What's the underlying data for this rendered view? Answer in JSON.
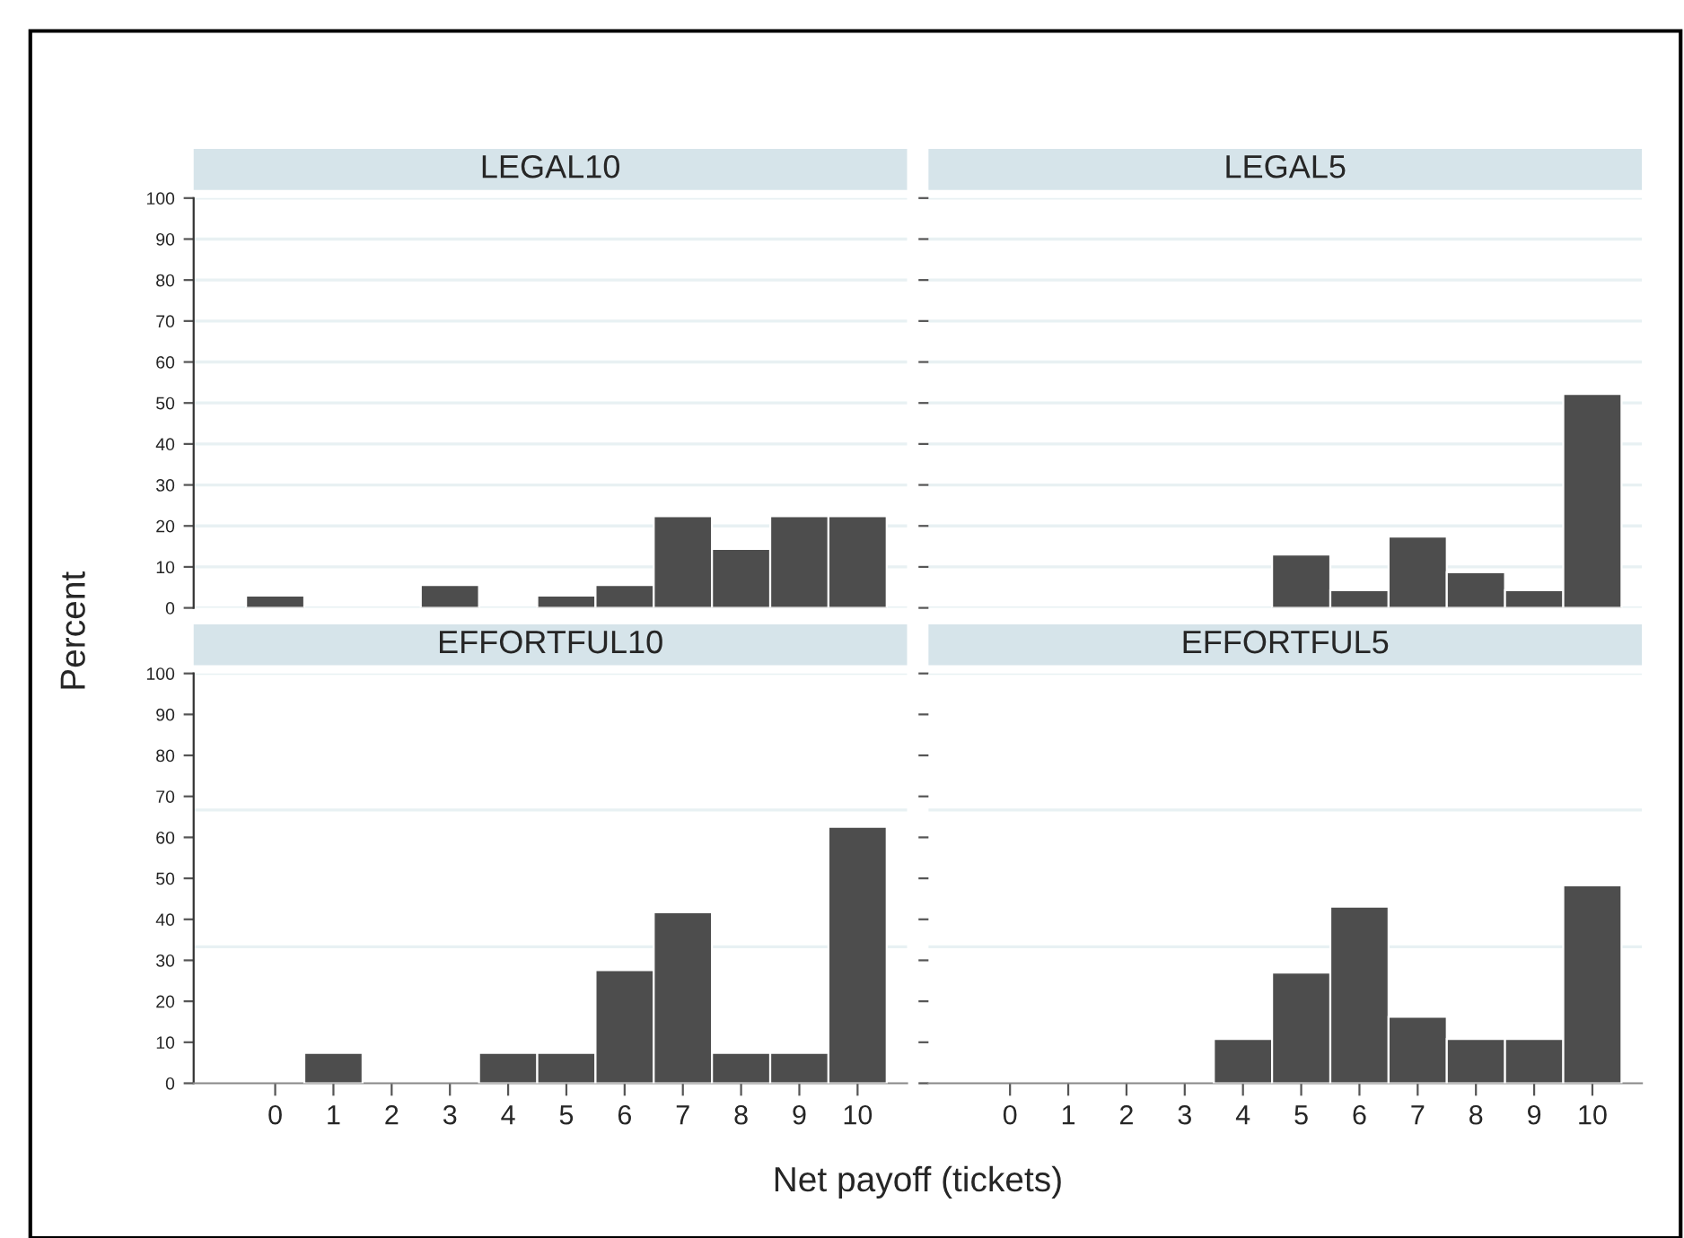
{
  "chart_data": [
    {
      "type": "histogram",
      "title": "LEGAL10",
      "ylabel": "Percent",
      "bins": [
        -0.5,
        0.5,
        1.5,
        2.5,
        3.5,
        4.5,
        5.5,
        6.5,
        7.5,
        8.5,
        9.5,
        10.5
      ],
      "values": [
        3,
        0,
        0,
        5.6,
        0,
        3,
        5.6,
        22.4,
        14.4,
        22.4,
        22.4
      ],
      "color": "#4d4d4d",
      "xlim": [
        -1.4,
        10.85
      ],
      "ylim": [
        0,
        100
      ],
      "xticks": [
        0,
        1,
        2,
        3,
        4,
        5,
        6,
        7,
        8,
        9,
        10
      ],
      "yticks": [
        0,
        10,
        20,
        30,
        40,
        50,
        60,
        70,
        80,
        90,
        100
      ],
      "grid": "y",
      "tick_labels": "y"
    },
    {
      "type": "histogram",
      "title": "LEGAL5",
      "bins": [
        -0.5,
        0.5,
        1.5,
        2.5,
        3.5,
        4.5,
        5.5,
        6.5,
        7.5,
        8.5,
        9.5,
        10.5
      ],
      "values": [
        0,
        0,
        0,
        0,
        0,
        13,
        4.3,
        17.4,
        8.7,
        4.3,
        52.2
      ],
      "color": "#4d4d4d",
      "xlim": [
        -1.4,
        10.85
      ],
      "ylim": [
        0,
        100
      ],
      "xticks": [
        0,
        1,
        2,
        3,
        4,
        5,
        6,
        7,
        8,
        9,
        10
      ],
      "yticks": [
        0,
        10,
        20,
        30,
        40,
        50,
        60,
        70,
        80,
        90,
        100
      ],
      "grid": "y",
      "tick_labels": false
    },
    {
      "type": "histogram",
      "title": "EFFORTFUL10",
      "bins": [
        -0.5,
        0.5,
        1.5,
        2.5,
        3.5,
        4.5,
        5.5,
        6.5,
        7.5,
        8.5,
        9.5,
        10.5
      ],
      "values": [
        0,
        7.4,
        0,
        0,
        7.4,
        7.4,
        27.6,
        41.7,
        7.4,
        7.4,
        62.6
      ],
      "color": "#4d4d4d",
      "xlim": [
        -1.4,
        10.85
      ],
      "ylim": [
        0,
        100
      ],
      "xticks": [
        0,
        1,
        2,
        3,
        4,
        5,
        6,
        7,
        8,
        9,
        10
      ],
      "yticks": [
        0,
        10,
        20,
        30,
        40,
        50,
        60,
        70,
        80,
        90,
        100
      ],
      "ref_lines": [
        {
          "axis": "y",
          "value": 33.3,
          "color": "#e8f1f3"
        },
        {
          "axis": "y",
          "value": 66.7,
          "color": "#e8f1f3"
        },
        {
          "axis": "y",
          "value": 100,
          "color": "#e8f1f3"
        }
      ]
    },
    {
      "type": "histogram",
      "title": "EFFORTFUL5",
      "xlabel": "Net payoff (tickets)",
      "bins": [
        -0.5,
        0.5,
        1.5,
        2.5,
        3.5,
        4.5,
        5.5,
        6.5,
        7.5,
        8.5,
        9.5,
        10.5
      ],
      "values": [
        0,
        0,
        0,
        0,
        10.8,
        27,
        43.1,
        16.2,
        10.8,
        10.8,
        48.3
      ],
      "color": "#4d4d4d",
      "xlim": [
        -1.4,
        10.85
      ],
      "ylim": [
        0,
        100
      ],
      "xticks": [
        0,
        1,
        2,
        3,
        4,
        5,
        6,
        7,
        8,
        9,
        10
      ],
      "yticks": [
        0,
        10,
        20,
        30,
        40,
        50,
        60,
        70,
        80,
        90,
        100
      ],
      "ref_lines": [
        {
          "axis": "y",
          "value": 33.3,
          "color": "#e8f1f3"
        },
        {
          "axis": "y",
          "value": 66.7,
          "color": "#e8f1f3"
        },
        {
          "axis": "y",
          "value": 100,
          "color": "#e8f1f3"
        }
      ],
      "tick_labels": "x"
    }
  ]
}
